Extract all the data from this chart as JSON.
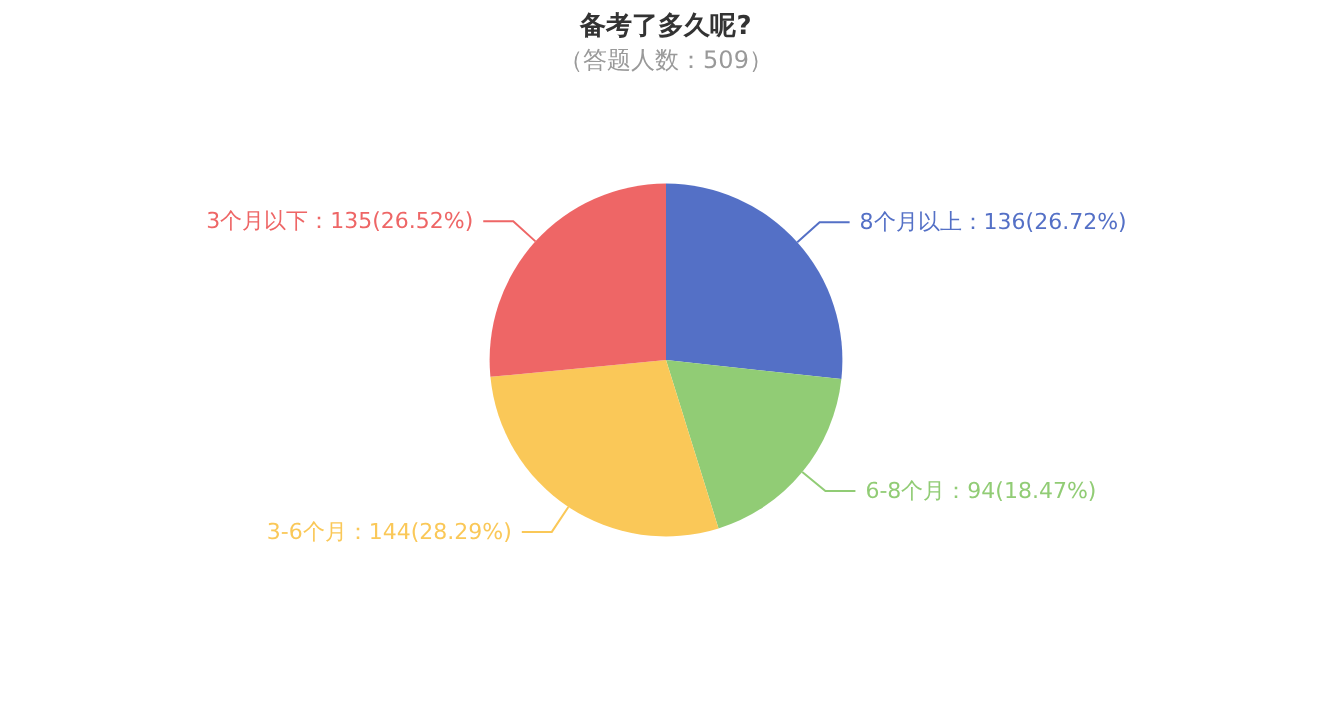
{
  "chart_data": {
    "type": "pie",
    "title": "备考了多久呢?",
    "subtitle": "（答题人数：509）",
    "categories": [
      "8个月以上",
      "6-8个月",
      "3-6个月",
      "3个月以下"
    ],
    "values": [
      136,
      94,
      144,
      135
    ],
    "value_labels": [
      "136(26.72%)",
      "94(18.47%)",
      "144(28.29%)",
      "135(26.52%)"
    ],
    "colors": [
      "#5470c6",
      "#91cc75",
      "#fac858",
      "#ee6666"
    ],
    "legend": false
  }
}
